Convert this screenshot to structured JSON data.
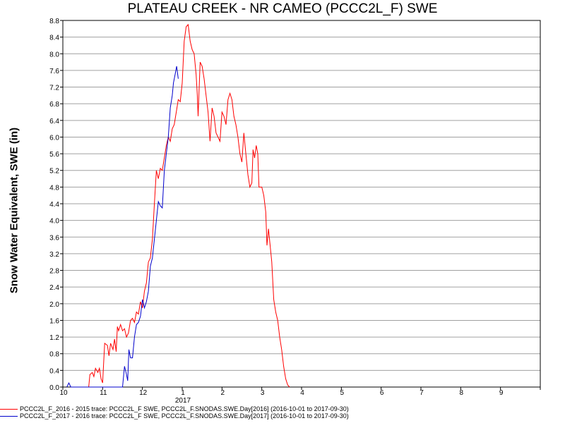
{
  "chart_data": {
    "type": "line",
    "title": "PLATEAU CREEK - NR CAMEO (PCCC2L_F) SWE",
    "ylabel": "Snow Water Equivalent, SWE (in)",
    "xlabel": "",
    "ylim": [
      0,
      8.8
    ],
    "y_ticks": [
      "0.0",
      "0.4",
      "0.8",
      "1.2",
      "1.6",
      "2.0",
      "2.4",
      "2.8",
      "3.2",
      "3.6",
      "4.0",
      "4.4",
      "4.8",
      "5.2",
      "5.6",
      "6.0",
      "6.4",
      "6.8",
      "7.2",
      "7.6",
      "8.0",
      "8.4",
      "8.8"
    ],
    "x_ticks": [
      "10",
      "11",
      "12",
      "1",
      "2",
      "3",
      "4",
      "5",
      "6",
      "7",
      "8",
      "9"
    ],
    "x_year_label": "2017",
    "grid": true,
    "series": [
      {
        "name": "PCCC2L_F_2016 - 2015 trace: PCCC2L_F SWE, PCCC2L_F.SNODAS.SWE.Day[2016] (2016-10-01 to 2017-09-30)",
        "color": "#ff0000",
        "points": [
          [
            0.65,
            0
          ],
          [
            0.68,
            0.3
          ],
          [
            0.74,
            0.35
          ],
          [
            0.78,
            0.25
          ],
          [
            0.82,
            0.45
          ],
          [
            0.88,
            0.35
          ],
          [
            0.92,
            0.45
          ],
          [
            0.96,
            0.2
          ],
          [
            1.0,
            0.1
          ],
          [
            1.05,
            1.05
          ],
          [
            1.12,
            1.0
          ],
          [
            1.16,
            0.75
          ],
          [
            1.2,
            1.05
          ],
          [
            1.26,
            0.9
          ],
          [
            1.3,
            1.15
          ],
          [
            1.34,
            0.85
          ],
          [
            1.37,
            1.45
          ],
          [
            1.4,
            1.35
          ],
          [
            1.45,
            1.5
          ],
          [
            1.5,
            1.35
          ],
          [
            1.55,
            1.4
          ],
          [
            1.6,
            1.2
          ],
          [
            1.65,
            1.3
          ],
          [
            1.7,
            1.6
          ],
          [
            1.75,
            1.65
          ],
          [
            1.8,
            1.55
          ],
          [
            1.85,
            1.8
          ],
          [
            1.9,
            1.75
          ],
          [
            1.95,
            2.05
          ],
          [
            2.0,
            1.9
          ],
          [
            2.05,
            2.3
          ],
          [
            2.1,
            2.5
          ],
          [
            2.15,
            3.0
          ],
          [
            2.2,
            3.1
          ],
          [
            2.25,
            3.55
          ],
          [
            2.3,
            4.4
          ],
          [
            2.35,
            5.2
          ],
          [
            2.4,
            5.0
          ],
          [
            2.45,
            5.25
          ],
          [
            2.5,
            5.2
          ],
          [
            2.55,
            5.5
          ],
          [
            2.6,
            5.8
          ],
          [
            2.65,
            6.0
          ],
          [
            2.7,
            5.9
          ],
          [
            2.75,
            6.2
          ],
          [
            2.8,
            6.3
          ],
          [
            2.85,
            6.6
          ],
          [
            2.9,
            6.9
          ],
          [
            2.95,
            6.85
          ],
          [
            3.0,
            7.3
          ],
          [
            3.05,
            8.3
          ],
          [
            3.1,
            8.65
          ],
          [
            3.15,
            8.7
          ],
          [
            3.2,
            8.3
          ],
          [
            3.25,
            8.1
          ],
          [
            3.3,
            8.0
          ],
          [
            3.35,
            7.5
          ],
          [
            3.38,
            7.0
          ],
          [
            3.4,
            6.5
          ],
          [
            3.45,
            7.8
          ],
          [
            3.5,
            7.7
          ],
          [
            3.55,
            7.4
          ],
          [
            3.6,
            7.0
          ],
          [
            3.65,
            6.6
          ],
          [
            3.7,
            5.9
          ],
          [
            3.75,
            6.7
          ],
          [
            3.8,
            6.5
          ],
          [
            3.85,
            6.1
          ],
          [
            3.9,
            6.0
          ],
          [
            3.95,
            5.9
          ],
          [
            4.0,
            6.6
          ],
          [
            4.05,
            6.5
          ],
          [
            4.1,
            6.3
          ],
          [
            4.15,
            6.9
          ],
          [
            4.2,
            7.05
          ],
          [
            4.25,
            6.9
          ],
          [
            4.3,
            6.5
          ],
          [
            4.35,
            6.3
          ],
          [
            4.4,
            6.0
          ],
          [
            4.45,
            5.6
          ],
          [
            4.5,
            5.4
          ],
          [
            4.55,
            6.1
          ],
          [
            4.6,
            5.6
          ],
          [
            4.65,
            5.1
          ],
          [
            4.7,
            4.8
          ],
          [
            4.75,
            4.9
          ],
          [
            4.78,
            5.7
          ],
          [
            4.82,
            5.5
          ],
          [
            4.86,
            5.8
          ],
          [
            4.9,
            5.6
          ],
          [
            4.93,
            4.8
          ],
          [
            5.0,
            4.8
          ],
          [
            5.05,
            4.6
          ],
          [
            5.1,
            4.2
          ],
          [
            5.13,
            3.4
          ],
          [
            5.17,
            3.8
          ],
          [
            5.2,
            3.5
          ],
          [
            5.25,
            3.0
          ],
          [
            5.3,
            2.1
          ],
          [
            5.35,
            1.8
          ],
          [
            5.4,
            1.6
          ],
          [
            5.45,
            1.2
          ],
          [
            5.5,
            0.9
          ],
          [
            5.55,
            0.5
          ],
          [
            5.6,
            0.2
          ],
          [
            5.65,
            0.05
          ],
          [
            5.7,
            0
          ]
        ]
      },
      {
        "name": "PCCC2L_F_2017 - 2016 trace: PCCC2L_F SWE, PCCC2L_F.SNODAS.SWE.Day[2017] (2016-10-01 to 2017-09-30)",
        "color": "#0000cc",
        "points": [
          [
            0.1,
            0
          ],
          [
            0.15,
            0.1
          ],
          [
            0.2,
            0
          ],
          [
            1.5,
            0
          ],
          [
            1.55,
            0.5
          ],
          [
            1.6,
            0.3
          ],
          [
            1.63,
            0.15
          ],
          [
            1.66,
            0.9
          ],
          [
            1.7,
            0.7
          ],
          [
            1.75,
            0.7
          ],
          [
            1.8,
            1.2
          ],
          [
            1.85,
            1.5
          ],
          [
            1.9,
            1.55
          ],
          [
            1.95,
            1.7
          ],
          [
            2.0,
            2.1
          ],
          [
            2.05,
            1.9
          ],
          [
            2.1,
            2.05
          ],
          [
            2.15,
            2.3
          ],
          [
            2.2,
            2.9
          ],
          [
            2.25,
            3.1
          ],
          [
            2.3,
            3.55
          ],
          [
            2.35,
            4.0
          ],
          [
            2.4,
            4.45
          ],
          [
            2.45,
            4.35
          ],
          [
            2.5,
            4.3
          ],
          [
            2.55,
            5.2
          ],
          [
            2.6,
            5.6
          ],
          [
            2.65,
            6.0
          ],
          [
            2.7,
            6.7
          ],
          [
            2.75,
            7.0
          ],
          [
            2.78,
            7.3
          ],
          [
            2.82,
            7.5
          ],
          [
            2.86,
            7.7
          ],
          [
            2.9,
            7.4
          ]
        ]
      }
    ]
  }
}
